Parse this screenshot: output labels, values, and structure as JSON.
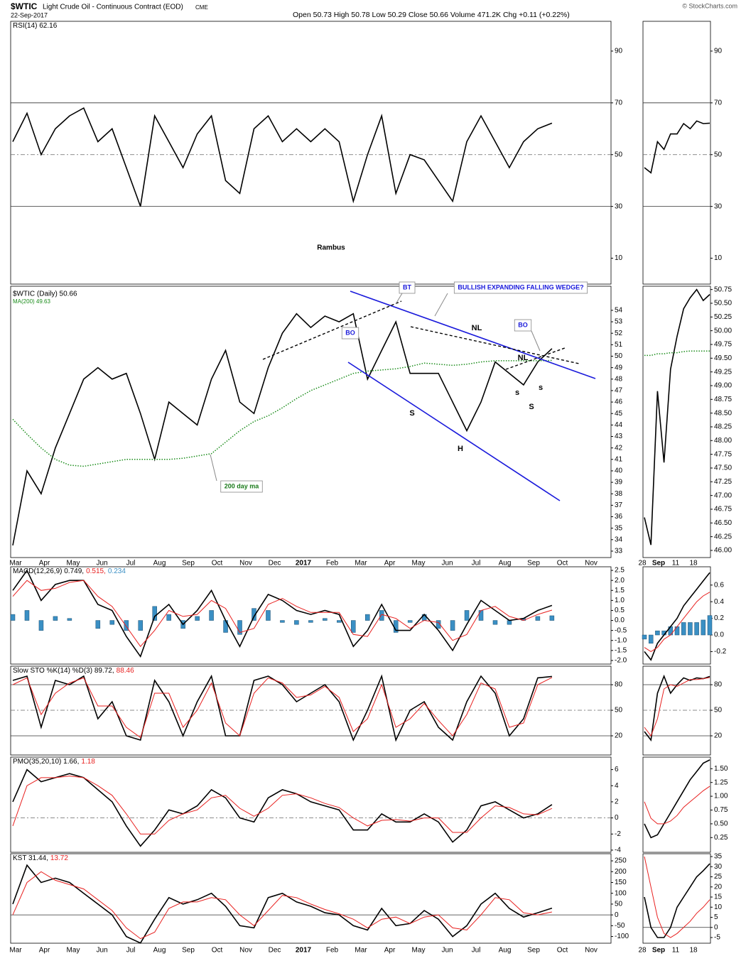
{
  "header": {
    "symbol": "$WTIC",
    "name": "Light Crude Oil - Continuous Contract (EOD)",
    "exchange": "CME",
    "date": "22-Sep-2017",
    "quote": "Open 50.73 High 50.78 Low 50.29 Close 50.66 Volume 471.2K Chg +0.11 (+0.22%)",
    "copyright": "© StockCharts.com"
  },
  "x_axis": {
    "categories": [
      "Mar",
      "Apr",
      "May",
      "Jun",
      "Jul",
      "Aug",
      "Sep",
      "Oct",
      "Nov",
      "Dec",
      "2017",
      "Feb",
      "Mar",
      "Apr",
      "May",
      "Jun",
      "Jul",
      "Aug",
      "Sep",
      "Oct",
      "Nov"
    ],
    "mini_categories": [
      "28",
      "Sep",
      "11",
      "18"
    ]
  },
  "chart_data": [
    {
      "type": "line",
      "legend": [
        "RSI(14) 62.16"
      ],
      "annotation": "Rambus",
      "ylim": [
        0,
        101.5
      ],
      "yticks": [
        90,
        70,
        50,
        30,
        10
      ],
      "hlines": [
        70,
        30
      ],
      "dashed_hlines": [
        50
      ],
      "series": [
        {
          "color": "#000000",
          "values": [
            55,
            66,
            50,
            60,
            65,
            68,
            55,
            60,
            45,
            30,
            65,
            55,
            45,
            58,
            65,
            40,
            35,
            60,
            65,
            55,
            60,
            55,
            60,
            55,
            32,
            50,
            65,
            35,
            50,
            48,
            40,
            32,
            55,
            65,
            55,
            45,
            55,
            60,
            62.16
          ]
        }
      ],
      "mini": {
        "ylim": [
          0,
          101.5
        ],
        "yticks": [
          90,
          70,
          50,
          30,
          10
        ],
        "hlines": [
          70,
          30
        ],
        "dashed_hlines": [
          50
        ],
        "series": [
          {
            "color": "#000000",
            "values": [
              45,
              43,
              55,
              52,
              58,
              58,
              62,
              60,
              63,
              62,
              62.16
            ]
          }
        ]
      }
    },
    {
      "type": "line",
      "legend": [
        "$WTIC (Daily) 50.66",
        "MA(200) 49.63"
      ],
      "legend_layout": "stacked",
      "annotations": [
        "BT",
        "BO",
        "BULLISH EXPANDING FALLING WEDGE?",
        "BO",
        "NL",
        "NL",
        "S",
        "H",
        "S",
        "s",
        "s",
        "200 day ma"
      ],
      "ylim": [
        32.44,
        56.1
      ],
      "yticks": [
        54,
        53,
        52,
        51,
        50,
        49,
        48,
        47,
        46,
        45,
        44,
        43,
        42,
        41,
        40,
        39,
        38,
        37,
        36,
        35,
        34,
        33
      ],
      "series": [
        {
          "color": "#000000",
          "values": [
            33.5,
            40,
            38,
            42,
            45,
            48,
            49,
            48,
            48.5,
            45,
            41,
            46,
            45,
            44,
            48,
            50.5,
            46,
            45,
            49,
            52,
            53.7,
            52.5,
            53.5,
            53,
            53.7,
            48,
            50.5,
            53,
            48.5,
            48.5,
            48.5,
            46,
            43.5,
            46,
            49.5,
            48.5,
            47.5,
            49.5,
            50.66
          ]
        },
        {
          "color": "#1a8c1a",
          "style": "dotted",
          "values": [
            44.5,
            43.2,
            42,
            41,
            40.5,
            40.4,
            40.6,
            40.8,
            41,
            41,
            41,
            41,
            41.1,
            41.3,
            41.5,
            42.5,
            43.5,
            44.3,
            44.8,
            45.5,
            46.3,
            47,
            47.5,
            48,
            48.5,
            48.7,
            48.8,
            48.9,
            49.1,
            49.4,
            49.3,
            49.2,
            49.3,
            49.5,
            49.6,
            49.6,
            49.6,
            49.6,
            49.63
          ]
        }
      ],
      "mini": {
        "ylim": [
          45.87,
          50.81
        ],
        "yticks": [
          50.75,
          {
            "value": 50.5,
            "label": "50.50"
          },
          50.25,
          {
            "value": 50,
            "label": "50.00"
          },
          49.75,
          {
            "value": 49.5,
            "label": "49.50"
          },
          49.25,
          {
            "value": 49,
            "label": "49.00"
          },
          48.75,
          {
            "value": 48.5,
            "label": "48.50"
          },
          48.25,
          {
            "value": 48,
            "label": "48.00"
          },
          47.75,
          {
            "value": 47.5,
            "label": "47.50"
          },
          47.25,
          {
            "value": 47,
            "label": "47.00"
          },
          46.75,
          {
            "value": 46.5,
            "label": "46.50"
          },
          46.25,
          {
            "value": 46,
            "label": "46.00"
          }
        ],
        "series": [
          {
            "color": "#000000",
            "values": [
              46.6,
              46.1,
              48.9,
              47.6,
              49.3,
              49.9,
              50.4,
              50.6,
              50.75,
              50.55,
              50.66
            ]
          },
          {
            "color": "#1a8c1a",
            "style": "dotted",
            "values": [
              49.55,
              49.55,
              49.58,
              49.58,
              49.6,
              49.6,
              49.62,
              49.63,
              49.63,
              49.63,
              49.63
            ]
          }
        ]
      }
    },
    {
      "type": "line",
      "legend": [
        "MACD(12,26,9) 0.749,",
        "0.515,",
        "0.234"
      ],
      "ylim": [
        -2.18,
        2.68
      ],
      "yticks": [
        2.5,
        {
          "value": 2,
          "label": "2.0"
        },
        1.5,
        {
          "value": 1,
          "label": "1.0"
        },
        0.5,
        {
          "value": 0,
          "label": "0.0"
        },
        -0.5,
        {
          "value": -1,
          "label": "-1.0"
        },
        -1.5,
        {
          "value": -2,
          "label": "-2.0"
        }
      ],
      "series": [
        {
          "color": "#000000",
          "values": [
            1.5,
            2.5,
            1.0,
            1.8,
            2.0,
            2.0,
            0.8,
            0.5,
            -0.8,
            -1.8,
            0.2,
            0.8,
            -0.2,
            0.5,
            1.5,
            0,
            -1.3,
            0.2,
            1.3,
            1.0,
            0.5,
            0.3,
            0.5,
            0.3,
            -1.3,
            -0.5,
            0.8,
            -0.5,
            -0.5,
            0.3,
            -0.5,
            -1.5,
            -0.2,
            1.0,
            0.5,
            0,
            0.1,
            0.5,
            0.749
          ]
        },
        {
          "color": "#e8201f",
          "values": [
            1.2,
            2.0,
            1.5,
            1.6,
            1.9,
            2.0,
            1.2,
            0.7,
            -0.3,
            -1.3,
            -0.5,
            0.5,
            0.2,
            0.3,
            1.0,
            0.6,
            -0.6,
            -0.4,
            0.8,
            1.1,
            0.7,
            0.4,
            0.4,
            0.4,
            -0.7,
            -0.8,
            0.3,
            0.1,
            -0.4,
            0,
            -0.1,
            -1.0,
            -0.7,
            0.5,
            0.7,
            0.2,
            0,
            0.3,
            0.515
          ]
        },
        {
          "color": "#3a8fc4",
          "type": "bar",
          "values": [
            0.3,
            0.5,
            -0.5,
            0.2,
            0.1,
            0,
            -0.4,
            -0.2,
            -0.5,
            -0.5,
            0.7,
            0.3,
            -0.4,
            0.2,
            0.5,
            -0.6,
            -0.7,
            0.6,
            0.5,
            -0.1,
            -0.2,
            -0.1,
            0.1,
            -0.1,
            -0.6,
            0.3,
            0.5,
            -0.6,
            -0.1,
            0.3,
            -0.4,
            -0.5,
            0.5,
            0.5,
            -0.2,
            -0.2,
            0.1,
            0.2,
            0.234
          ]
        }
      ],
      "mini": {
        "ylim": [
          -0.35,
          0.82
        ],
        "yticks": [
          0.6,
          0.4,
          0.2,
          {
            "value": 0,
            "label": "0.0"
          },
          -0.2
        ],
        "series": [
          {
            "color": "#000000",
            "values": [
              -0.2,
              -0.3,
              -0.1,
              0.0,
              0.1,
              0.2,
              0.35,
              0.45,
              0.55,
              0.65,
              0.749
            ]
          },
          {
            "color": "#e8201f",
            "values": [
              -0.15,
              -0.2,
              -0.15,
              -0.05,
              0.0,
              0.1,
              0.2,
              0.3,
              0.4,
              0.47,
              0.515
            ]
          },
          {
            "color": "#3a8fc4",
            "type": "bar",
            "values": [
              -0.05,
              -0.1,
              0.05,
              0.05,
              0.1,
              0.1,
              0.15,
              0.15,
              0.15,
              0.18,
              0.234
            ]
          }
        ]
      }
    },
    {
      "type": "line",
      "legend": [
        "Slow STO %K(14) %D(3) 89.72,",
        "88.46"
      ],
      "ylim": [
        -2.5,
        101.7
      ],
      "yticks": [
        80,
        50,
        20
      ],
      "hlines": [
        80,
        20
      ],
      "dashed_hlines": [
        50
      ],
      "series": [
        {
          "color": "#000000",
          "values": [
            85,
            90,
            30,
            85,
            80,
            90,
            40,
            60,
            20,
            15,
            85,
            60,
            20,
            60,
            90,
            20,
            20,
            85,
            90,
            80,
            60,
            70,
            80,
            60,
            15,
            50,
            90,
            15,
            50,
            60,
            30,
            15,
            60,
            90,
            70,
            20,
            40,
            88,
            89.72
          ]
        },
        {
          "color": "#e8201f",
          "values": [
            80,
            88,
            45,
            70,
            82,
            88,
            55,
            55,
            30,
            18,
            70,
            70,
            30,
            50,
            82,
            35,
            20,
            70,
            88,
            82,
            65,
            68,
            78,
            65,
            25,
            40,
            80,
            30,
            40,
            58,
            38,
            20,
            45,
            82,
            75,
            30,
            35,
            80,
            88.46
          ]
        }
      ],
      "mini": {
        "ylim": [
          -2.5,
          101.7
        ],
        "yticks": [
          80,
          50,
          20
        ],
        "hlines": [
          80,
          20
        ],
        "dashed_hlines": [
          50
        ],
        "series": [
          {
            "color": "#000000",
            "values": [
              25,
              15,
              70,
              90,
              70,
              80,
              88,
              85,
              88,
              87,
              89.72
            ]
          },
          {
            "color": "#e8201f",
            "values": [
              30,
              20,
              40,
              75,
              80,
              78,
              82,
              86,
              86,
              87,
              88.46
            ]
          }
        ]
      }
    },
    {
      "type": "line",
      "legend": [
        "PMO(35,20,10) 1.66,",
        "1.18"
      ],
      "ylim": [
        -4.27,
        7.55
      ],
      "yticks": [
        6,
        4,
        2,
        0,
        -2,
        -4
      ],
      "dashed_hlines": [
        0
      ],
      "series": [
        {
          "color": "#000000",
          "values": [
            2,
            6,
            4.5,
            5,
            5.5,
            5,
            3.5,
            2,
            -1,
            -3.5,
            -1.5,
            1,
            0.5,
            1.5,
            3.5,
            2.5,
            0,
            -0.5,
            2.5,
            3.5,
            3,
            2,
            1.5,
            1,
            -1.5,
            -1.5,
            0.5,
            -0.5,
            -0.5,
            0.5,
            -0.5,
            -3,
            -1.5,
            1.5,
            2,
            1,
            0,
            0.5,
            1.66
          ]
        },
        {
          "color": "#e8201f",
          "values": [
            -1,
            4,
            5,
            5,
            5.2,
            5,
            4,
            2.8,
            0.5,
            -2,
            -2,
            -0.3,
            0.5,
            1,
            2.5,
            2.8,
            1.2,
            0.2,
            1.2,
            2.8,
            3,
            2.5,
            1.8,
            1.3,
            0,
            -1,
            -0.3,
            -0.2,
            -0.4,
            0,
            0,
            -1.8,
            -1.8,
            0,
            1.5,
            1.3,
            0.5,
            0.4,
            1.18
          ]
        }
      ],
      "mini": {
        "ylim": [
          -0.017,
          1.71
        ],
        "yticks": [
          {
            "value": 1.5,
            "label": "1.50"
          },
          1.25,
          {
            "value": 1,
            "label": "1.00"
          },
          0.75,
          {
            "value": 0.5,
            "label": "0.50"
          },
          0.25
        ],
        "series": [
          {
            "color": "#000000",
            "values": [
              0.5,
              0.25,
              0.3,
              0.5,
              0.7,
              0.9,
              1.1,
              1.3,
              1.45,
              1.6,
              1.66
            ]
          },
          {
            "color": "#e8201f",
            "values": [
              0.9,
              0.6,
              0.5,
              0.5,
              0.55,
              0.65,
              0.8,
              0.9,
              1.0,
              1.1,
              1.18
            ]
          }
        ]
      }
    },
    {
      "type": "line",
      "legend": [
        "KST 31.44,",
        "13.72"
      ],
      "ylim": [
        -131,
        283
      ],
      "yticks": [
        250,
        200,
        150,
        100,
        50,
        0,
        -50,
        -100
      ],
      "hlines": [
        0
      ],
      "series": [
        {
          "color": "#000000",
          "values": [
            50,
            230,
            150,
            170,
            150,
            100,
            50,
            0,
            -100,
            -130,
            -20,
            80,
            50,
            70,
            100,
            40,
            -50,
            -60,
            80,
            100,
            60,
            40,
            10,
            0,
            -50,
            -70,
            30,
            -50,
            -40,
            20,
            -20,
            -100,
            -50,
            50,
            100,
            30,
            -10,
            10,
            31.44
          ]
        },
        {
          "color": "#e8201f",
          "values": [
            0,
            150,
            200,
            160,
            140,
            120,
            70,
            20,
            -60,
            -110,
            -80,
            30,
            60,
            60,
            80,
            70,
            0,
            -50,
            20,
            90,
            80,
            50,
            25,
            5,
            -20,
            -60,
            -20,
            -10,
            -40,
            -10,
            0,
            -60,
            -70,
            0,
            80,
            70,
            10,
            0,
            13.72
          ]
        }
      ],
      "mini": {
        "ylim": [
          -7.8,
          36.4
        ],
        "yticks": [
          35,
          30,
          25,
          20,
          15,
          10,
          5,
          0,
          -5
        ],
        "hlines": [
          0
        ],
        "series": [
          {
            "color": "#000000",
            "values": [
              15,
              0,
              -5,
              -5,
              0,
              10,
              15,
              20,
              25,
              28,
              31.44
            ]
          },
          {
            "color": "#e8201f",
            "values": [
              35,
              20,
              5,
              -3,
              -5,
              -3,
              0,
              3,
              7,
              10,
              13.72
            ]
          }
        ]
      }
    }
  ]
}
